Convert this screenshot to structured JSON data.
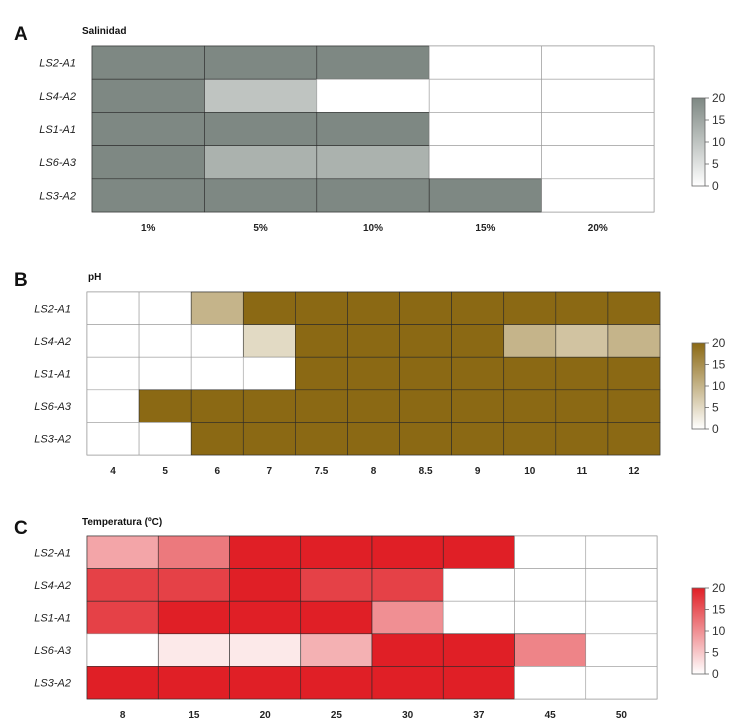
{
  "chart_data": [
    {
      "type": "heatmap",
      "panel": "A",
      "title": "Salinidad",
      "rows": [
        "LS2-A1",
        "LS4-A2",
        "LS1-A1",
        "LS6-A3",
        "LS3-A2"
      ],
      "columns": [
        "1%",
        "5%",
        "10%",
        "15%",
        "20%"
      ],
      "values": [
        [
          20,
          20,
          20,
          0,
          0
        ],
        [
          20,
          10,
          0,
          0,
          0
        ],
        [
          20,
          20,
          20,
          0,
          0
        ],
        [
          20,
          13,
          13,
          0,
          0
        ],
        [
          20,
          20,
          20,
          20,
          0
        ]
      ],
      "legend": {
        "ticks": [
          0,
          5,
          10,
          15,
          20
        ],
        "range": [
          0,
          20
        ]
      },
      "colors": {
        "low": "#ffffff",
        "high": "#7e8883"
      }
    },
    {
      "type": "heatmap",
      "panel": "B",
      "title": "pH",
      "rows": [
        "LS2-A1",
        "LS4-A2",
        "LS1-A1",
        "LS6-A3",
        "LS3-A2"
      ],
      "columns": [
        "4",
        "5",
        "6",
        "7",
        "7.5",
        "8",
        "8.5",
        "9",
        "10",
        "11",
        "12"
      ],
      "values": [
        [
          0,
          0,
          10,
          20,
          20,
          20,
          20,
          20,
          20,
          20,
          20
        ],
        [
          0,
          0,
          0,
          5,
          20,
          20,
          20,
          20,
          10,
          8,
          10
        ],
        [
          0,
          0,
          0,
          0,
          20,
          20,
          20,
          20,
          20,
          20,
          20
        ],
        [
          0,
          20,
          20,
          20,
          20,
          20,
          20,
          20,
          20,
          20,
          20
        ],
        [
          0,
          0,
          20,
          20,
          20,
          20,
          20,
          20,
          20,
          20,
          20
        ]
      ],
      "legend": {
        "ticks": [
          0,
          5,
          10,
          15,
          20
        ],
        "range": [
          0,
          20
        ]
      },
      "colors": {
        "low": "#ffffff",
        "high": "#8b6914"
      }
    },
    {
      "type": "heatmap",
      "panel": "C",
      "title": "Temperatura (ºC)",
      "rows": [
        "LS2-A1",
        "LS4-A2",
        "LS1-A1",
        "LS6-A3",
        "LS3-A2"
      ],
      "columns": [
        "8",
        "15",
        "20",
        "25",
        "30",
        "37",
        "45",
        "50"
      ],
      "values": [
        [
          8,
          12,
          20,
          20,
          20,
          20,
          0,
          0
        ],
        [
          17,
          17,
          20,
          17,
          17,
          0,
          0,
          0
        ],
        [
          17,
          20,
          20,
          20,
          10,
          0,
          0,
          0
        ],
        [
          0,
          2,
          2,
          7,
          20,
          20,
          11,
          0
        ],
        [
          20,
          20,
          20,
          20,
          20,
          20,
          0,
          0
        ]
      ],
      "legend": {
        "ticks": [
          0,
          5,
          10,
          15,
          20
        ],
        "range": [
          0,
          20
        ]
      },
      "colors": {
        "low": "#ffffff",
        "high": "#e01f26"
      }
    }
  ]
}
